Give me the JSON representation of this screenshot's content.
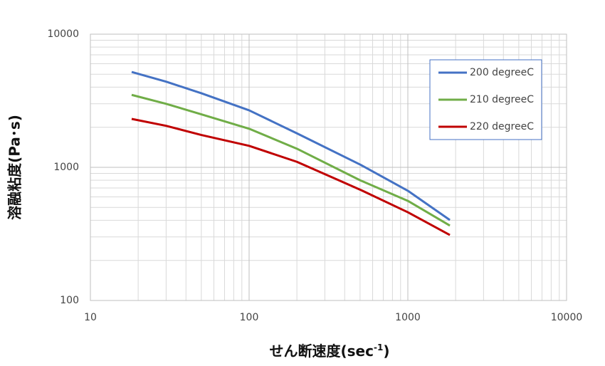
{
  "chart_data": {
    "type": "line",
    "x": [
      18.2,
      30,
      50,
      100,
      200,
      500,
      1000,
      1840
    ],
    "series": [
      {
        "name": "200 degreeC",
        "color": "#4472c4",
        "values": [
          5200,
          4400,
          3600,
          2680,
          1800,
          1050,
          667,
          402
        ]
      },
      {
        "name": "210 degreeC",
        "color": "#70ad47",
        "values": [
          3500,
          3000,
          2500,
          1950,
          1380,
          800,
          560,
          365
        ]
      },
      {
        "name": "220 degreeC",
        "color": "#c00000",
        "values": [
          2310,
          2050,
          1750,
          1450,
          1100,
          680,
          460,
          310
        ]
      }
    ],
    "x_label": {
      "text": "せん断速度(sec",
      "sup": "-1",
      "end": ")"
    },
    "y_label": "溶融粘度(Pa･s)",
    "xscale": "log",
    "yscale": "log",
    "xlim": [
      10,
      10000
    ],
    "ylim": [
      100,
      10000
    ],
    "xticks": [
      10,
      100,
      1000,
      10000
    ],
    "yticks": [
      100,
      1000,
      10000
    ],
    "xminor": [
      20,
      30,
      40,
      50,
      60,
      70,
      80,
      90,
      200,
      300,
      400,
      500,
      600,
      700,
      800,
      900,
      2000,
      3000,
      4000,
      5000,
      6000,
      7000,
      8000,
      9000
    ],
    "yminor": [
      200,
      300,
      400,
      500,
      600,
      700,
      800,
      900,
      2000,
      3000,
      4000,
      5000,
      6000,
      7000,
      8000,
      9000
    ],
    "grid": true,
    "legend": "upper right"
  }
}
